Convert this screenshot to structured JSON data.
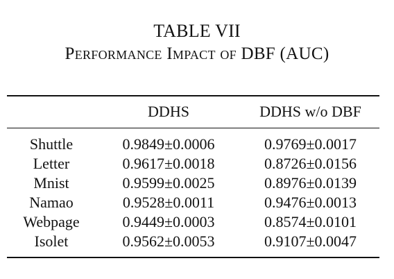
{
  "caption": {
    "label": "TABLE VII",
    "title": "Performance Impact of DBF (AUC)"
  },
  "table": {
    "headers": [
      "",
      "DDHS",
      "DDHS w/o DBF"
    ],
    "rows": [
      {
        "dataset": "Shuttle",
        "ddhs": "0.9849±0.0006",
        "ddhs_wo_dbf": "0.9769±0.0017"
      },
      {
        "dataset": "Letter",
        "ddhs": "0.9617±0.0018",
        "ddhs_wo_dbf": "0.8726±0.0156"
      },
      {
        "dataset": "Mnist",
        "ddhs": "0.9599±0.0025",
        "ddhs_wo_dbf": "0.8976±0.0139"
      },
      {
        "dataset": "Namao",
        "ddhs": "0.9528±0.0011",
        "ddhs_wo_dbf": "0.9476±0.0013"
      },
      {
        "dataset": "Webpage",
        "ddhs": "0.9449±0.0003",
        "ddhs_wo_dbf": "0.8574±0.0101"
      },
      {
        "dataset": "Isolet",
        "ddhs": "0.9562±0.0053",
        "ddhs_wo_dbf": "0.9107±0.0047"
      }
    ],
    "bold_column": "ddhs"
  }
}
